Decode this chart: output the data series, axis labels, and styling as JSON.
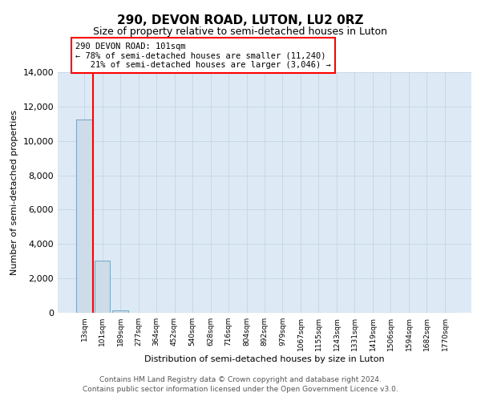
{
  "title": "290, DEVON ROAD, LUTON, LU2 0RZ",
  "subtitle": "Size of property relative to semi-detached houses in Luton",
  "xlabel": "Distribution of semi-detached houses by size in Luton",
  "ylabel": "Number of semi-detached properties",
  "bar_labels": [
    "13sqm",
    "101sqm",
    "189sqm",
    "277sqm",
    "364sqm",
    "452sqm",
    "540sqm",
    "628sqm",
    "716sqm",
    "804sqm",
    "892sqm",
    "979sqm",
    "1067sqm",
    "1155sqm",
    "1243sqm",
    "1331sqm",
    "1419sqm",
    "1506sqm",
    "1594sqm",
    "1682sqm",
    "1770sqm"
  ],
  "bar_values": [
    11240,
    3046,
    150,
    0,
    0,
    0,
    0,
    0,
    0,
    0,
    0,
    0,
    0,
    0,
    0,
    0,
    0,
    0,
    0,
    0,
    0
  ],
  "bar_color": "#cddce8",
  "bar_edge_color": "#7aaac8",
  "ylim": [
    0,
    14000
  ],
  "yticks": [
    0,
    2000,
    4000,
    6000,
    8000,
    10000,
    12000,
    14000
  ],
  "annotation_line1": "290 DEVON ROAD: 101sqm",
  "annotation_line2": "← 78% of semi-detached houses are smaller (11,240)",
  "annotation_line3": "   21% of semi-detached houses are larger (3,046) →",
  "red_line_bar_index": 1,
  "grid_color": "#c8d8e8",
  "background_color": "#ddeaf5",
  "footer_line1": "Contains HM Land Registry data © Crown copyright and database right 2024.",
  "footer_line2": "Contains public sector information licensed under the Open Government Licence v3.0."
}
